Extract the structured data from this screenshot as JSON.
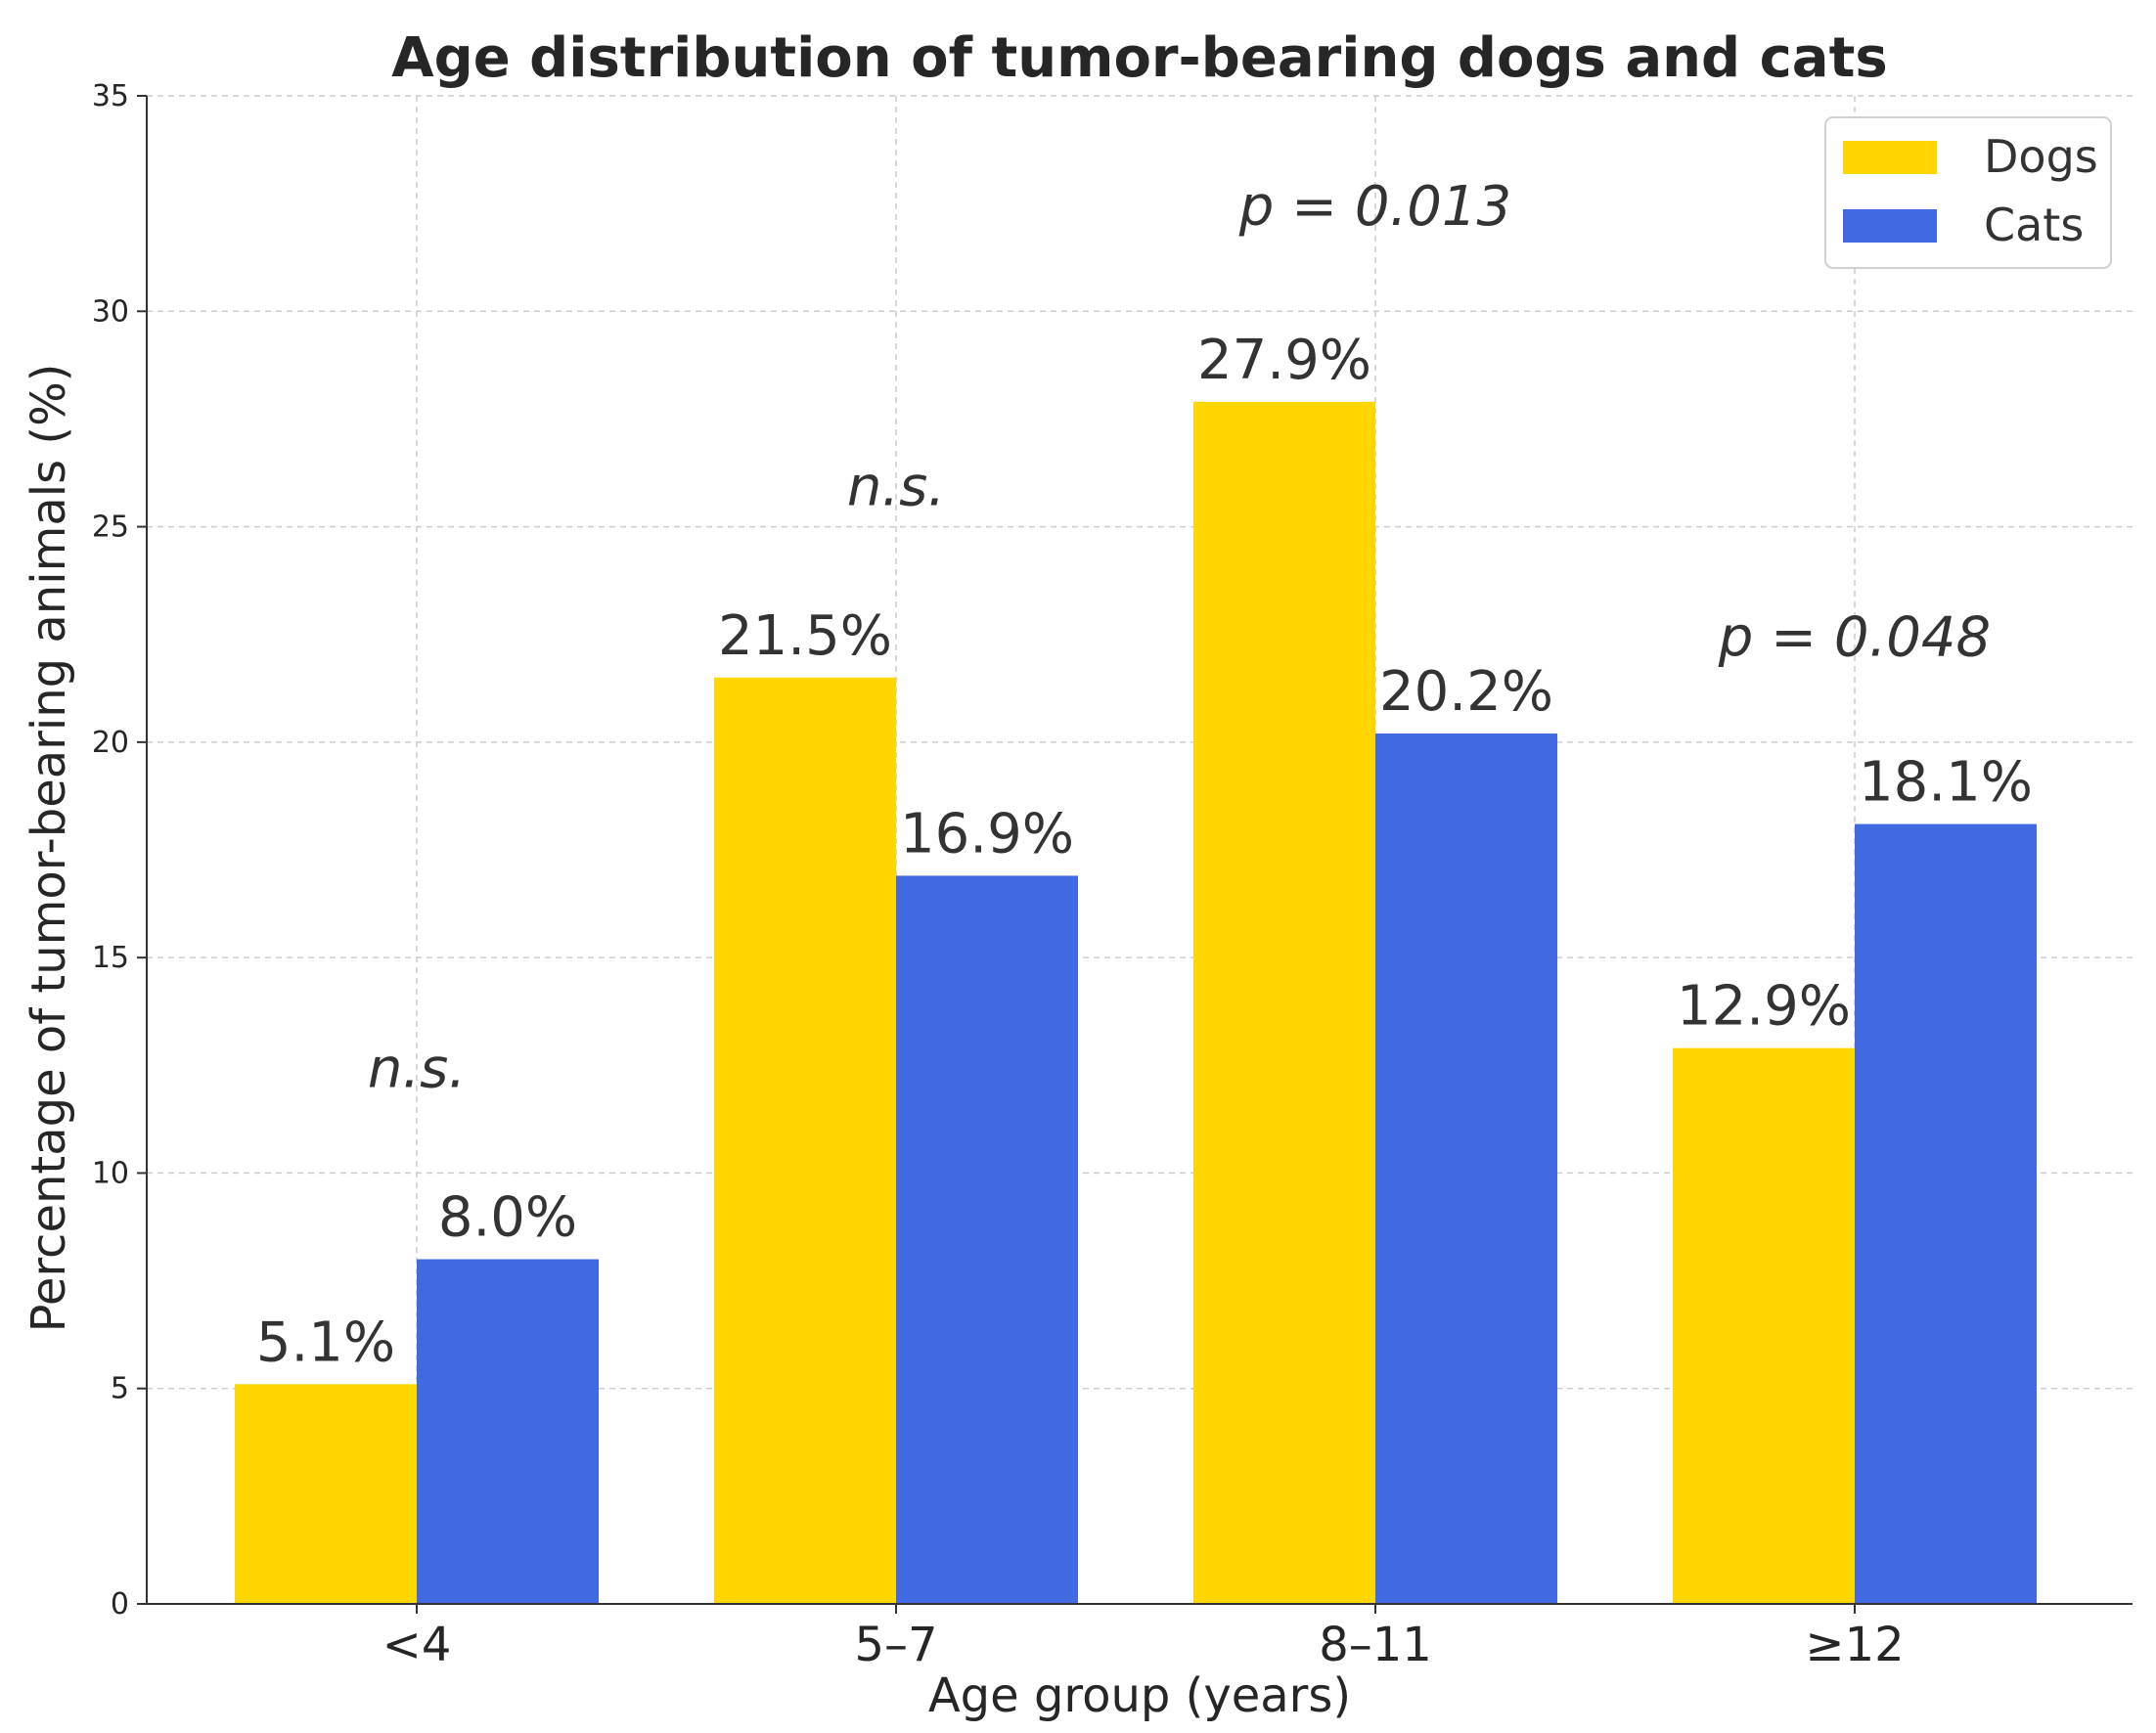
{
  "chart_data": {
    "type": "bar",
    "title": "Age distribution of tumor-bearing dogs and cats",
    "xlabel": "Age group (years)",
    "ylabel": "Percentage of tumor-bearing animals (%)",
    "ylim": [
      0,
      35
    ],
    "yticks": [
      0,
      5,
      10,
      15,
      20,
      25,
      30,
      35
    ],
    "grid": true,
    "legend_position": "top-right",
    "categories": [
      "<4",
      "5–7",
      "8–11",
      "≥12"
    ],
    "series": [
      {
        "name": "Dogs",
        "color": "#FFD600",
        "values": [
          5.1,
          21.5,
          27.9,
          12.9
        ],
        "labels": [
          "5.1%",
          "21.5%",
          "27.9%",
          "12.9%"
        ]
      },
      {
        "name": "Cats",
        "color": "#4169E1",
        "values": [
          8.0,
          16.9,
          20.2,
          18.1
        ],
        "labels": [
          "8.0%",
          "16.9%",
          "20.2%",
          "18.1%"
        ]
      }
    ],
    "annotations": [
      {
        "category": "<4",
        "text": "n.s.",
        "y": 12
      },
      {
        "category": "5–7",
        "text": "n.s.",
        "y": 25.5
      },
      {
        "category": "8–11",
        "text": "p = 0.013",
        "y": 32
      },
      {
        "category": "≥12",
        "text": "p = 0.048",
        "y": 22
      }
    ]
  }
}
